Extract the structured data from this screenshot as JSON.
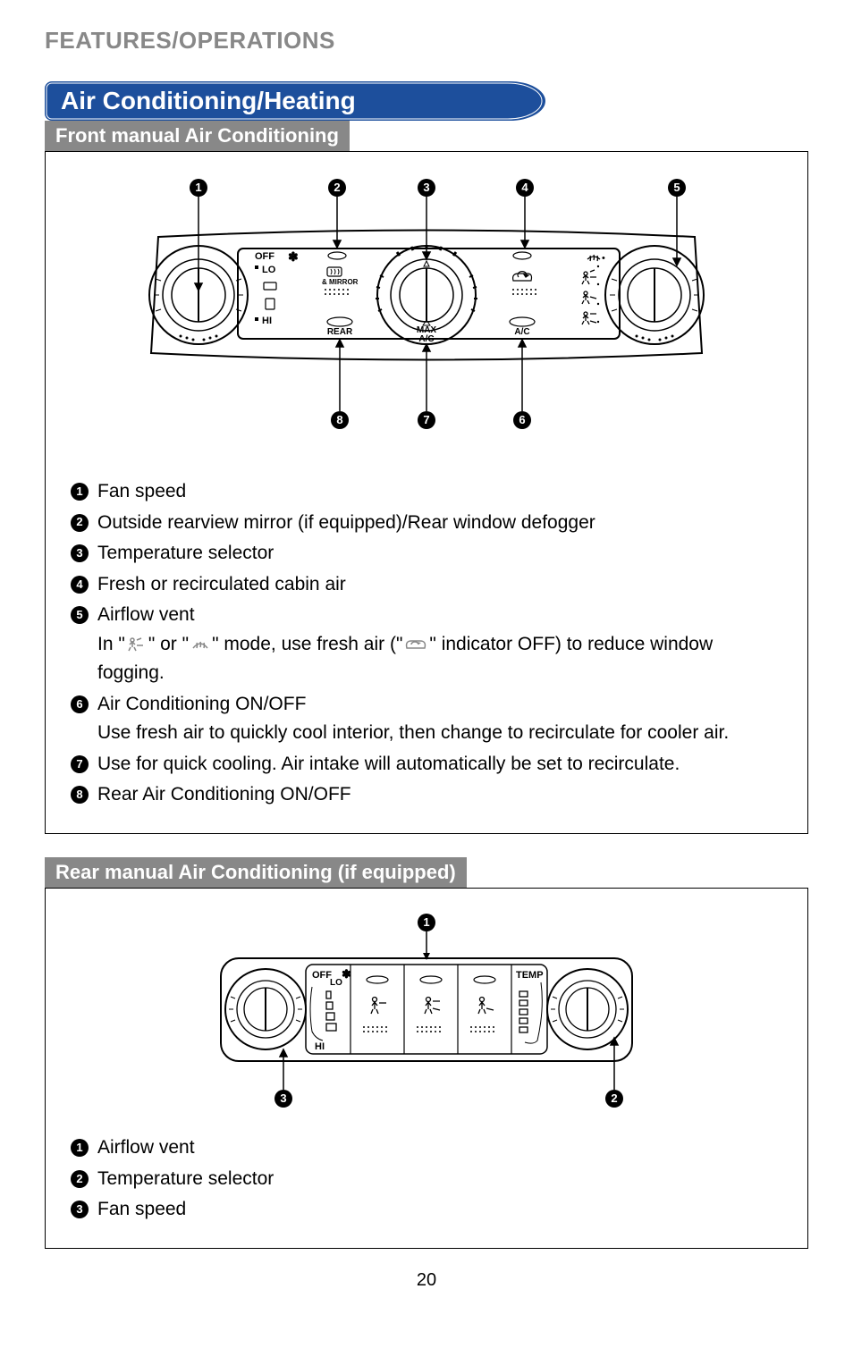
{
  "header": "FEATURES/OPERATIONS",
  "section_title": "Air Conditioning/Heating",
  "colors": {
    "header_gray": "#888888",
    "title_blue": "#1d4f9c",
    "sub_bar_gray": "#888888",
    "text": "#000000"
  },
  "front": {
    "sub_title": "Front manual Air Conditioning",
    "diagram": {
      "callouts_top": [
        1,
        2,
        3,
        4,
        5
      ],
      "callouts_bottom": [
        8,
        7,
        6
      ],
      "dial_labels": {
        "left": {
          "off": "OFF",
          "lo": "LO",
          "hi": "HI"
        },
        "mirror": "& MIRROR",
        "rear": "REAR",
        "max_ac": "MAX\nA/C",
        "ac": "A/C"
      }
    },
    "legend": [
      {
        "n": 1,
        "text": "Fan speed"
      },
      {
        "n": 2,
        "text": "Outside rearview mirror (if equipped)/Rear window defogger"
      },
      {
        "n": 3,
        "text": "Temperature selector"
      },
      {
        "n": 4,
        "text": "Fresh or recirculated cabin air"
      },
      {
        "n": 5,
        "text": "Airflow vent",
        "sub": "In \" ICON1 \" or \" ICON2 \" mode, use fresh air (\" ICON3 \" indicator OFF) to reduce window fogging."
      },
      {
        "n": 6,
        "text": "Air Conditioning ON/OFF",
        "sub": "Use fresh air to quickly cool interior, then change to recirculate for cooler air."
      },
      {
        "n": 7,
        "text": "Use for quick cooling. Air intake will automatically be set to recirculate."
      },
      {
        "n": 8,
        "text": "Rear Air Conditioning ON/OFF"
      }
    ]
  },
  "rear": {
    "sub_title": "Rear manual Air Conditioning (if equipped)",
    "diagram": {
      "callouts": [
        1,
        2,
        3
      ],
      "dial_labels": {
        "off": "OFF",
        "lo": "LO",
        "hi": "HI",
        "temp": "TEMP"
      }
    },
    "legend": [
      {
        "n": 1,
        "text": "Airflow vent"
      },
      {
        "n": 2,
        "text": "Temperature selector"
      },
      {
        "n": 3,
        "text": "Fan speed"
      }
    ]
  },
  "page_number": "20"
}
